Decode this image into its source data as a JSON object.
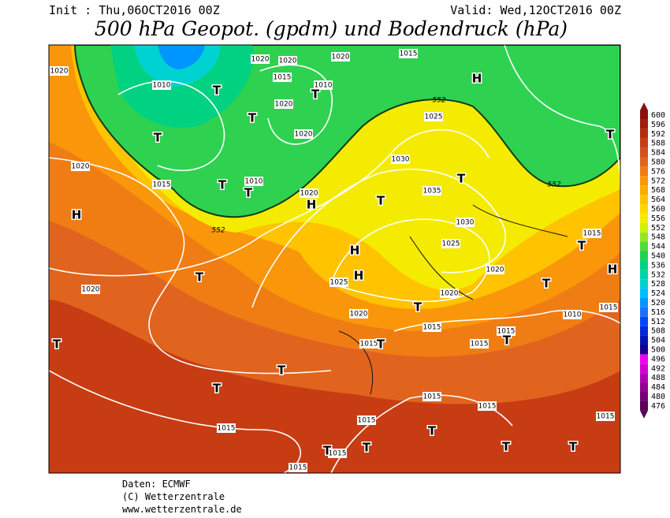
{
  "header": {
    "init": "Init : Thu,06OCT2016 00Z",
    "valid": "Valid: Wed,12OCT2016 00Z",
    "title": "500 hPa Geopot. (gpdm) und Bodendruck (hPa)"
  },
  "colorbar": {
    "labels": [
      600,
      596,
      592,
      588,
      584,
      580,
      576,
      572,
      568,
      564,
      560,
      556,
      552,
      548,
      544,
      540,
      536,
      532,
      528,
      524,
      520,
      516,
      512,
      508,
      504,
      500,
      496,
      492,
      488,
      484,
      480,
      476
    ],
    "colors": [
      "#8c1010",
      "#a01e0a",
      "#b42d0a",
      "#c83c14",
      "#d24f1e",
      "#e0641e",
      "#f07d14",
      "#fa960a",
      "#ffaa00",
      "#ffc300",
      "#ffd700",
      "#f5eb00",
      "#d2f000",
      "#96e61e",
      "#50dc3c",
      "#1ed250",
      "#00d282",
      "#00d2aa",
      "#00d2d2",
      "#00beff",
      "#0096ff",
      "#1e6eff",
      "#0046ff",
      "#0028dc",
      "#0014b4",
      "#14008c",
      "#f000f0",
      "#d200d2",
      "#b400b4",
      "#960096",
      "#780078",
      "#5a005a"
    ]
  },
  "map_labels": [
    "1020",
    "1010",
    "T",
    "T",
    "T",
    "1020",
    "1020",
    "1015",
    "1010",
    "T",
    "1020",
    "1020",
    "1020",
    "1015",
    "H",
    "552",
    "1025",
    "1020",
    "1015",
    "1010",
    "T",
    "T",
    "1020",
    "H",
    "552",
    "552",
    "H",
    "1030",
    "1035",
    "T",
    "T",
    "1030",
    "1025",
    "H",
    "H",
    "1025",
    "T",
    "1020",
    "1020",
    "1020",
    "T",
    "1020",
    "1015",
    "1015",
    "T",
    "1015",
    "1015",
    "T",
    "1010",
    "T",
    "T",
    "T",
    "1015",
    "T",
    "1015",
    "1015",
    "1015",
    "T",
    "1015",
    "T",
    "T",
    "1015",
    "T",
    "1015",
    "T",
    "H",
    "T",
    "1015",
    "1015",
    "T"
  ],
  "footer": {
    "source": "Daten: ECMWF",
    "copyright": "(C) Wetterzentrale",
    "url": "www.wetterzentrale.de"
  }
}
